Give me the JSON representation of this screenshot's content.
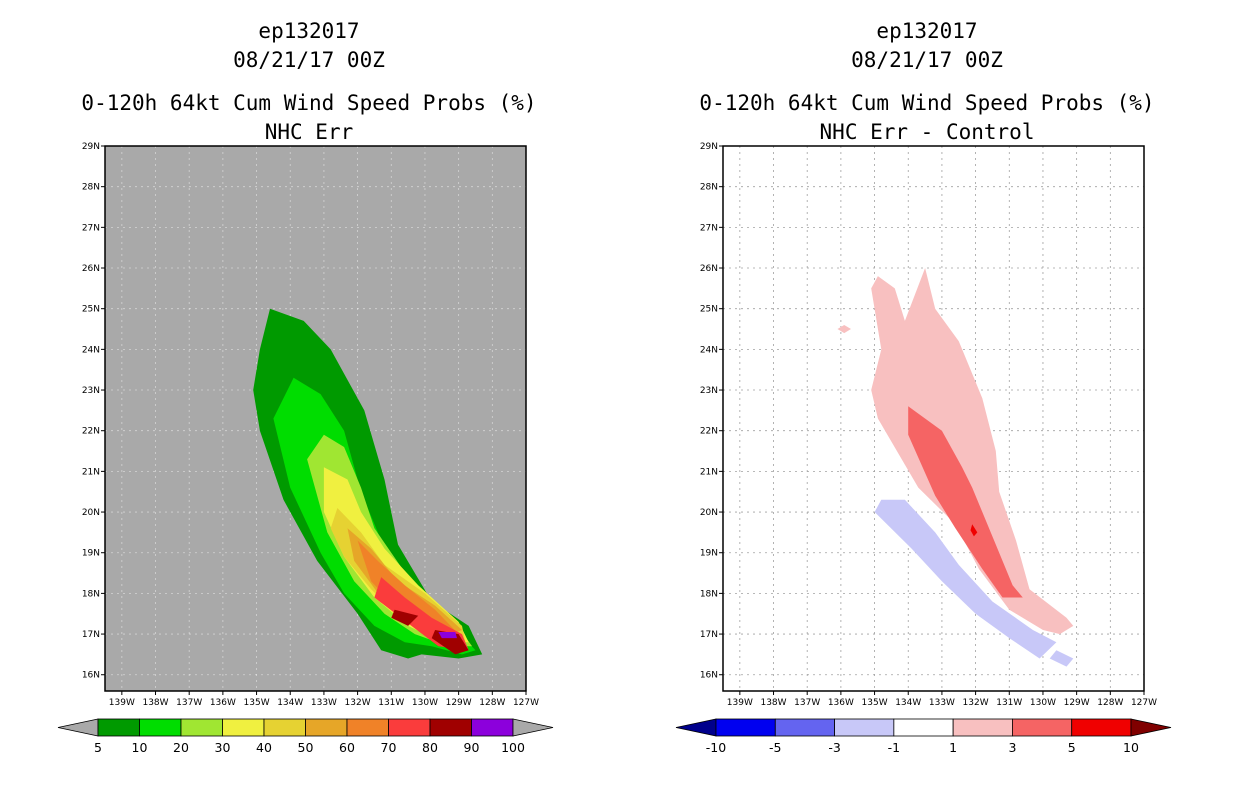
{
  "chart_data": [
    {
      "type": "heatmap",
      "storm_id": "ep132017",
      "date": "08/21/17 00Z",
      "title": "0-120h 64kt Cum Wind Speed Probs (%)",
      "subtitle": "NHC Err",
      "x_ticks": [
        "139W",
        "138W",
        "137W",
        "136W",
        "135W",
        "134W",
        "133W",
        "132W",
        "131W",
        "130W",
        "129W",
        "128W",
        "127W"
      ],
      "y_ticks": [
        "16N",
        "17N",
        "18N",
        "19N",
        "20N",
        "21N",
        "22N",
        "23N",
        "24N",
        "25N",
        "26N",
        "27N",
        "28N",
        "29N"
      ],
      "xlim_deg_west": [
        139.5,
        127
      ],
      "ylim_deg_north": [
        15.6,
        29
      ],
      "background": "#a9a9a9",
      "colorbar": {
        "labels": [
          "5",
          "10",
          "20",
          "30",
          "40",
          "50",
          "60",
          "70",
          "80",
          "90",
          "100"
        ],
        "colors": [
          "#009a00",
          "#00dd00",
          "#a0e632",
          "#f0f040",
          "#e6d232",
          "#e6a628",
          "#f08228",
          "#fa3c3c",
          "#a00000",
          "#8c00dc"
        ],
        "extend_color": "#a9a9a9"
      },
      "contours": [
        {
          "level": 5,
          "color": "#009a00",
          "points": [
            [
              134.6,
              25.0
            ],
            [
              133.6,
              24.7
            ],
            [
              132.8,
              24.0
            ],
            [
              131.8,
              22.5
            ],
            [
              131.2,
              20.8
            ],
            [
              130.8,
              19.2
            ],
            [
              129.8,
              17.8
            ],
            [
              128.7,
              17.2
            ],
            [
              128.3,
              16.5
            ],
            [
              129.0,
              16.4
            ],
            [
              130.1,
              16.5
            ],
            [
              130.5,
              16.4
            ],
            [
              131.3,
              16.6
            ],
            [
              132.0,
              17.5
            ],
            [
              133.2,
              18.8
            ],
            [
              134.2,
              20.3
            ],
            [
              134.9,
              22.0
            ],
            [
              135.1,
              23.0
            ],
            [
              134.9,
              24.0
            ]
          ]
        },
        {
          "level": 10,
          "color": "#00dd00",
          "points": [
            [
              133.9,
              23.3
            ],
            [
              133.1,
              22.9
            ],
            [
              132.4,
              22.0
            ],
            [
              131.9,
              20.5
            ],
            [
              131.3,
              19.3
            ],
            [
              130.4,
              18.2
            ],
            [
              129.3,
              17.3
            ],
            [
              128.5,
              16.6
            ],
            [
              128.9,
              16.5
            ],
            [
              129.8,
              16.7
            ],
            [
              130.6,
              16.8
            ],
            [
              131.5,
              17.2
            ],
            [
              132.4,
              18.0
            ],
            [
              133.1,
              19.0
            ],
            [
              134.0,
              20.6
            ],
            [
              134.5,
              22.3
            ]
          ]
        },
        {
          "level": 20,
          "color": "#a0e632",
          "points": [
            [
              133.0,
              21.9
            ],
            [
              132.4,
              21.6
            ],
            [
              131.9,
              20.6
            ],
            [
              131.5,
              19.6
            ],
            [
              130.5,
              18.4
            ],
            [
              129.3,
              17.5
            ],
            [
              128.6,
              16.7
            ],
            [
              129.3,
              16.7
            ],
            [
              130.3,
              17.0
            ],
            [
              131.2,
              17.5
            ],
            [
              132.1,
              18.3
            ],
            [
              132.9,
              19.5
            ],
            [
              133.5,
              21.3
            ]
          ]
        },
        {
          "level": 30,
          "color": "#f0f040",
          "points": [
            [
              133.0,
              21.1
            ],
            [
              132.3,
              20.8
            ],
            [
              131.9,
              20.0
            ],
            [
              131.2,
              19.1
            ],
            [
              130.2,
              18.2
            ],
            [
              129.0,
              17.3
            ],
            [
              128.7,
              16.8
            ],
            [
              129.5,
              16.8
            ],
            [
              130.5,
              17.2
            ],
            [
              131.5,
              17.9
            ],
            [
              132.4,
              18.9
            ],
            [
              133.0,
              20.0
            ]
          ]
        },
        {
          "level": 40,
          "color": "#e6d232",
          "points": [
            [
              132.6,
              20.1
            ],
            [
              131.9,
              19.5
            ],
            [
              131.2,
              18.7
            ],
            [
              130.0,
              18.0
            ],
            [
              128.9,
              17.2
            ],
            [
              128.8,
              16.8
            ],
            [
              129.7,
              16.9
            ],
            [
              130.6,
              17.3
            ],
            [
              131.6,
              18.1
            ],
            [
              132.4,
              18.9
            ],
            [
              132.8,
              19.6
            ]
          ]
        },
        {
          "level": 50,
          "color": "#e6a628",
          "points": [
            [
              132.3,
              19.6
            ],
            [
              131.6,
              19.1
            ],
            [
              130.8,
              18.3
            ],
            [
              129.7,
              17.7
            ],
            [
              128.9,
              17.1
            ],
            [
              129.5,
              16.9
            ],
            [
              130.4,
              17.3
            ],
            [
              131.3,
              17.9
            ],
            [
              132.1,
              18.8
            ]
          ]
        },
        {
          "level": 60,
          "color": "#f08228",
          "points": [
            [
              132.0,
              19.3
            ],
            [
              131.4,
              18.8
            ],
            [
              130.6,
              18.2
            ],
            [
              129.7,
              17.6
            ],
            [
              129.0,
              17.0
            ],
            [
              129.9,
              17.1
            ],
            [
              130.8,
              17.6
            ],
            [
              131.6,
              18.3
            ]
          ]
        },
        {
          "level": 70,
          "color": "#fa3c3c",
          "points": [
            [
              131.3,
              18.4
            ],
            [
              130.6,
              17.9
            ],
            [
              129.8,
              17.4
            ],
            [
              128.9,
              17.0
            ],
            [
              128.7,
              16.6
            ],
            [
              129.6,
              16.7
            ],
            [
              130.4,
              17.2
            ],
            [
              131.5,
              17.9
            ]
          ]
        },
        {
          "level": 80,
          "color": "#a00000",
          "points": [
            [
              130.9,
              17.6
            ],
            [
              130.2,
              17.45
            ],
            [
              130.5,
              17.2
            ],
            [
              131.0,
              17.4
            ]
          ]
        },
        {
          "level": 80,
          "color": "#a00000",
          "points": [
            [
              129.7,
              17.1
            ],
            [
              129.0,
              17.0
            ],
            [
              128.7,
              16.6
            ],
            [
              129.1,
              16.5
            ],
            [
              129.8,
              16.9
            ]
          ]
        },
        {
          "level": 90,
          "color": "#8c00dc",
          "points": [
            [
              129.6,
              17.05
            ],
            [
              129.1,
              17.05
            ],
            [
              129.05,
              16.9
            ],
            [
              129.5,
              16.9
            ]
          ]
        }
      ]
    },
    {
      "type": "heatmap",
      "storm_id": "ep132017",
      "date": "08/21/17 00Z",
      "title": "0-120h 64kt Cum Wind Speed Probs (%)",
      "subtitle": "NHC Err - Control",
      "x_ticks": [
        "139W",
        "138W",
        "137W",
        "136W",
        "135W",
        "134W",
        "133W",
        "132W",
        "131W",
        "130W",
        "129W",
        "128W",
        "127W"
      ],
      "y_ticks": [
        "16N",
        "17N",
        "18N",
        "19N",
        "20N",
        "21N",
        "22N",
        "23N",
        "24N",
        "25N",
        "26N",
        "27N",
        "28N",
        "29N"
      ],
      "xlim_deg_west": [
        139.5,
        127
      ],
      "ylim_deg_north": [
        15.6,
        29
      ],
      "background": "#ffffff",
      "grid": true,
      "colorbar": {
        "labels": [
          "-10",
          "-5",
          "-3",
          "-1",
          "1",
          "3",
          "5",
          "10"
        ],
        "colors": [
          "#0000f0",
          "#6464f0",
          "#c8c8f8",
          "#ffffff",
          "#f8c0c0",
          "#f56464",
          "#f00000"
        ],
        "extend_low_color": "#00008c",
        "extend_high_color": "#800000"
      },
      "contours": [
        {
          "level": 1,
          "color": "#f8c0c0",
          "points": [
            [
              134.9,
              25.8
            ],
            [
              134.4,
              25.5
            ],
            [
              134.1,
              24.7
            ],
            [
              133.5,
              26.0
            ],
            [
              133.2,
              25.0
            ],
            [
              132.5,
              24.2
            ],
            [
              131.8,
              22.8
            ],
            [
              131.4,
              21.5
            ],
            [
              131.3,
              20.5
            ],
            [
              130.8,
              19.3
            ],
            [
              130.4,
              18.1
            ],
            [
              129.3,
              17.4
            ],
            [
              129.1,
              17.2
            ],
            [
              129.5,
              17.0
            ],
            [
              130.0,
              17.1
            ],
            [
              131.0,
              17.6
            ],
            [
              131.9,
              18.6
            ],
            [
              132.6,
              19.7
            ],
            [
              133.7,
              20.6
            ],
            [
              134.9,
              22.3
            ],
            [
              135.1,
              23.0
            ],
            [
              134.8,
              24.0
            ],
            [
              135.1,
              25.5
            ]
          ]
        },
        {
          "level": 1,
          "color": "#f8c0c0",
          "points": [
            [
              135.9,
              24.6
            ],
            [
              135.7,
              24.5
            ],
            [
              135.9,
              24.4
            ],
            [
              136.1,
              24.5
            ]
          ]
        },
        {
          "level": 3,
          "color": "#f56464",
          "points": [
            [
              134.0,
              22.6
            ],
            [
              133.0,
              22.0
            ],
            [
              132.4,
              21.1
            ],
            [
              132.1,
              20.6
            ],
            [
              131.5,
              19.4
            ],
            [
              130.9,
              18.2
            ],
            [
              130.6,
              17.9
            ],
            [
              131.2,
              17.9
            ],
            [
              131.8,
              18.6
            ],
            [
              132.6,
              19.6
            ],
            [
              133.2,
              20.4
            ],
            [
              134.0,
              21.9
            ]
          ]
        },
        {
          "level": 5,
          "color": "#f00000",
          "points": [
            [
              132.1,
              19.7
            ],
            [
              131.95,
              19.5
            ],
            [
              132.05,
              19.4
            ],
            [
              132.15,
              19.55
            ]
          ]
        },
        {
          "level": -1,
          "color": "#c8c8f8",
          "points": [
            [
              134.1,
              20.3
            ],
            [
              133.2,
              19.5
            ],
            [
              132.5,
              18.7
            ],
            [
              131.5,
              17.8
            ],
            [
              130.3,
              17.1
            ],
            [
              129.6,
              16.8
            ],
            [
              130.1,
              16.4
            ],
            [
              131.0,
              16.9
            ],
            [
              132.0,
              17.5
            ],
            [
              133.0,
              18.3
            ],
            [
              133.9,
              19.1
            ],
            [
              135.0,
              20.0
            ],
            [
              134.8,
              20.3
            ]
          ]
        },
        {
          "level": -1,
          "color": "#c8c8f8",
          "points": [
            [
              129.6,
              16.6
            ],
            [
              129.1,
              16.4
            ],
            [
              129.3,
              16.2
            ],
            [
              129.8,
              16.4
            ]
          ]
        }
      ]
    }
  ]
}
